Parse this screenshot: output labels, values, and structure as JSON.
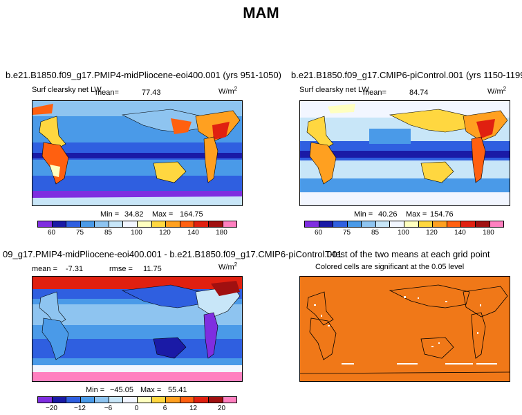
{
  "figure_title": "MAM",
  "colors": {
    "cb_abs": [
      "#7f2ee0",
      "#1a1aa6",
      "#2f5fe0",
      "#4a9ae8",
      "#8ec4f0",
      "#c8e6f8",
      "#f2f6ff",
      "#ffffc0",
      "#ffd740",
      "#ffa020",
      "#ff6010",
      "#e02010",
      "#a01010",
      "#ff80c0"
    ],
    "cb_diff": [
      "#7f2ee0",
      "#1a1aa6",
      "#2f5fe0",
      "#4a9ae8",
      "#8ec4f0",
      "#c8e6f8",
      "#f2f6ff",
      "#ffffc0",
      "#ffd740",
      "#ffa020",
      "#ff6010",
      "#e02010",
      "#a01010",
      "#ff80c0"
    ],
    "ttest": "#f07818"
  },
  "panels": {
    "p1": {
      "case": "b.e21.B1850.f09_g17.PMIP4-midPliocene-eoi400.001 (yrs 951-1050)",
      "variable": "Surf clearsky net LW",
      "mean_label": "mean=",
      "mean": "77.43",
      "units": "W/m",
      "units_sup": "2",
      "min_label": "Min =",
      "min": "34.82",
      "max_label": "Max =",
      "max": "164.75",
      "ticks": [
        "60",
        "75",
        "85",
        "100",
        "120",
        "140",
        "180"
      ]
    },
    "p2": {
      "case": "b.e21.B1850.f09_g17.CMIP6-piControl.001 (yrs 1150-1199)",
      "variable": "Surf clearsky net LW",
      "mean_label": "mean=",
      "mean": "84.74",
      "units": "W/m",
      "units_sup": "2",
      "min_label": "Min =",
      "min": "40.26",
      "max_label": "Max =",
      "max": "154.76",
      "ticks": [
        "60",
        "75",
        "85",
        "100",
        "120",
        "140",
        "180"
      ]
    },
    "p3": {
      "case": "09_g17.PMIP4-midPliocene-eoi400.001 - b.e21.B1850.f09_g17.CMIP6-piControl.001",
      "mean_label": "mean =",
      "mean": "-7.31",
      "rmse_label": "rmse =",
      "rmse": "11.75",
      "units": "W/m",
      "units_sup": "2",
      "min_label": "Min =",
      "min": "−45.05",
      "max_label": "Max =",
      "max": "55.41",
      "ticks": [
        "−20",
        "−12",
        "−6",
        "0",
        "6",
        "12",
        "20"
      ]
    },
    "p4": {
      "title": "T-test of the two means at each grid point",
      "subtitle": "Colored cells are significant at the 0.05 level"
    }
  }
}
